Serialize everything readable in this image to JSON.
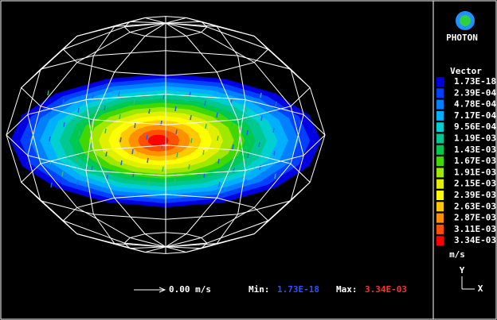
{
  "logo": {
    "title": "PHOTON"
  },
  "legend": {
    "title": "Vector",
    "unit": "m/s",
    "items": [
      {
        "label": "1.73E-18",
        "color": "#0000e0"
      },
      {
        "label": "2.39E-04",
        "color": "#0040ff"
      },
      {
        "label": "4.78E-04",
        "color": "#0080ff"
      },
      {
        "label": "7.17E-04",
        "color": "#00b0ff"
      },
      {
        "label": "9.56E-04",
        "color": "#00d0d0"
      },
      {
        "label": "1.19E-03",
        "color": "#00c890"
      },
      {
        "label": "1.43E-03",
        "color": "#00c850"
      },
      {
        "label": "1.67E-03",
        "color": "#40d800"
      },
      {
        "label": "1.91E-03",
        "color": "#a0e800"
      },
      {
        "label": "2.15E-03",
        "color": "#e0f000"
      },
      {
        "label": "2.39E-03",
        "color": "#ffff00"
      },
      {
        "label": "2.63E-03",
        "color": "#ffc800"
      },
      {
        "label": "2.87E-03",
        "color": "#ff9000"
      },
      {
        "label": "3.11E-03",
        "color": "#ff5000"
      },
      {
        "label": "3.34E-03",
        "color": "#ff0000"
      }
    ]
  },
  "axes": {
    "y": "Y",
    "x": "X"
  },
  "footer": {
    "reference": "0.00 m/s",
    "min_label": "Min:",
    "min": "1.73E-18",
    "max_label": "Max:",
    "max": "3.34E-03"
  }
}
